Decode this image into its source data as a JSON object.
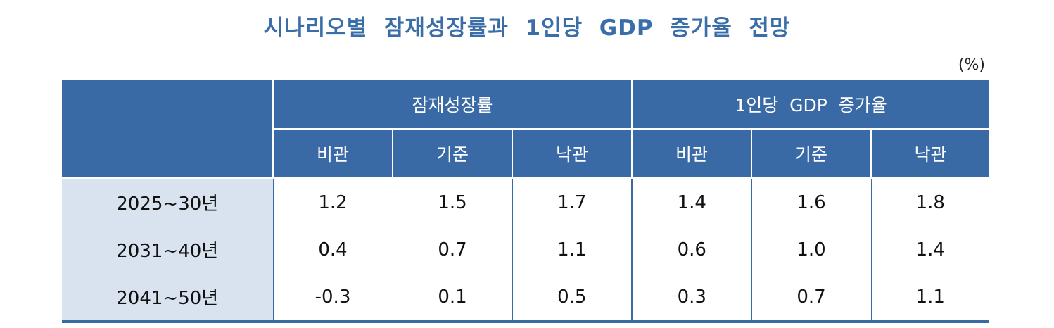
{
  "title": "시나리오별  잠재성장률과  1인당  GDP  증가율  전망",
  "unit": "(%)",
  "table": {
    "group_headers": [
      "잠재성장률",
      "1인당  GDP  증가율"
    ],
    "sub_headers": [
      "비관",
      "기준",
      "낙관",
      "비관",
      "기준",
      "낙관"
    ],
    "rows": [
      {
        "label": "2025~30년",
        "values": [
          "1.2",
          "1.5",
          "1.7",
          "1.4",
          "1.6",
          "1.8"
        ]
      },
      {
        "label": "2031~40년",
        "values": [
          "0.4",
          "0.7",
          "1.1",
          "0.6",
          "1.0",
          "1.4"
        ]
      },
      {
        "label": "2041~50년",
        "values": [
          "-0.3",
          "0.1",
          "0.5",
          "0.3",
          "0.7",
          "1.1"
        ]
      }
    ]
  },
  "colors": {
    "header_bg": "#3a6aa6",
    "row_label_bg": "#d9e3ef",
    "title": "#3a6ea8"
  }
}
